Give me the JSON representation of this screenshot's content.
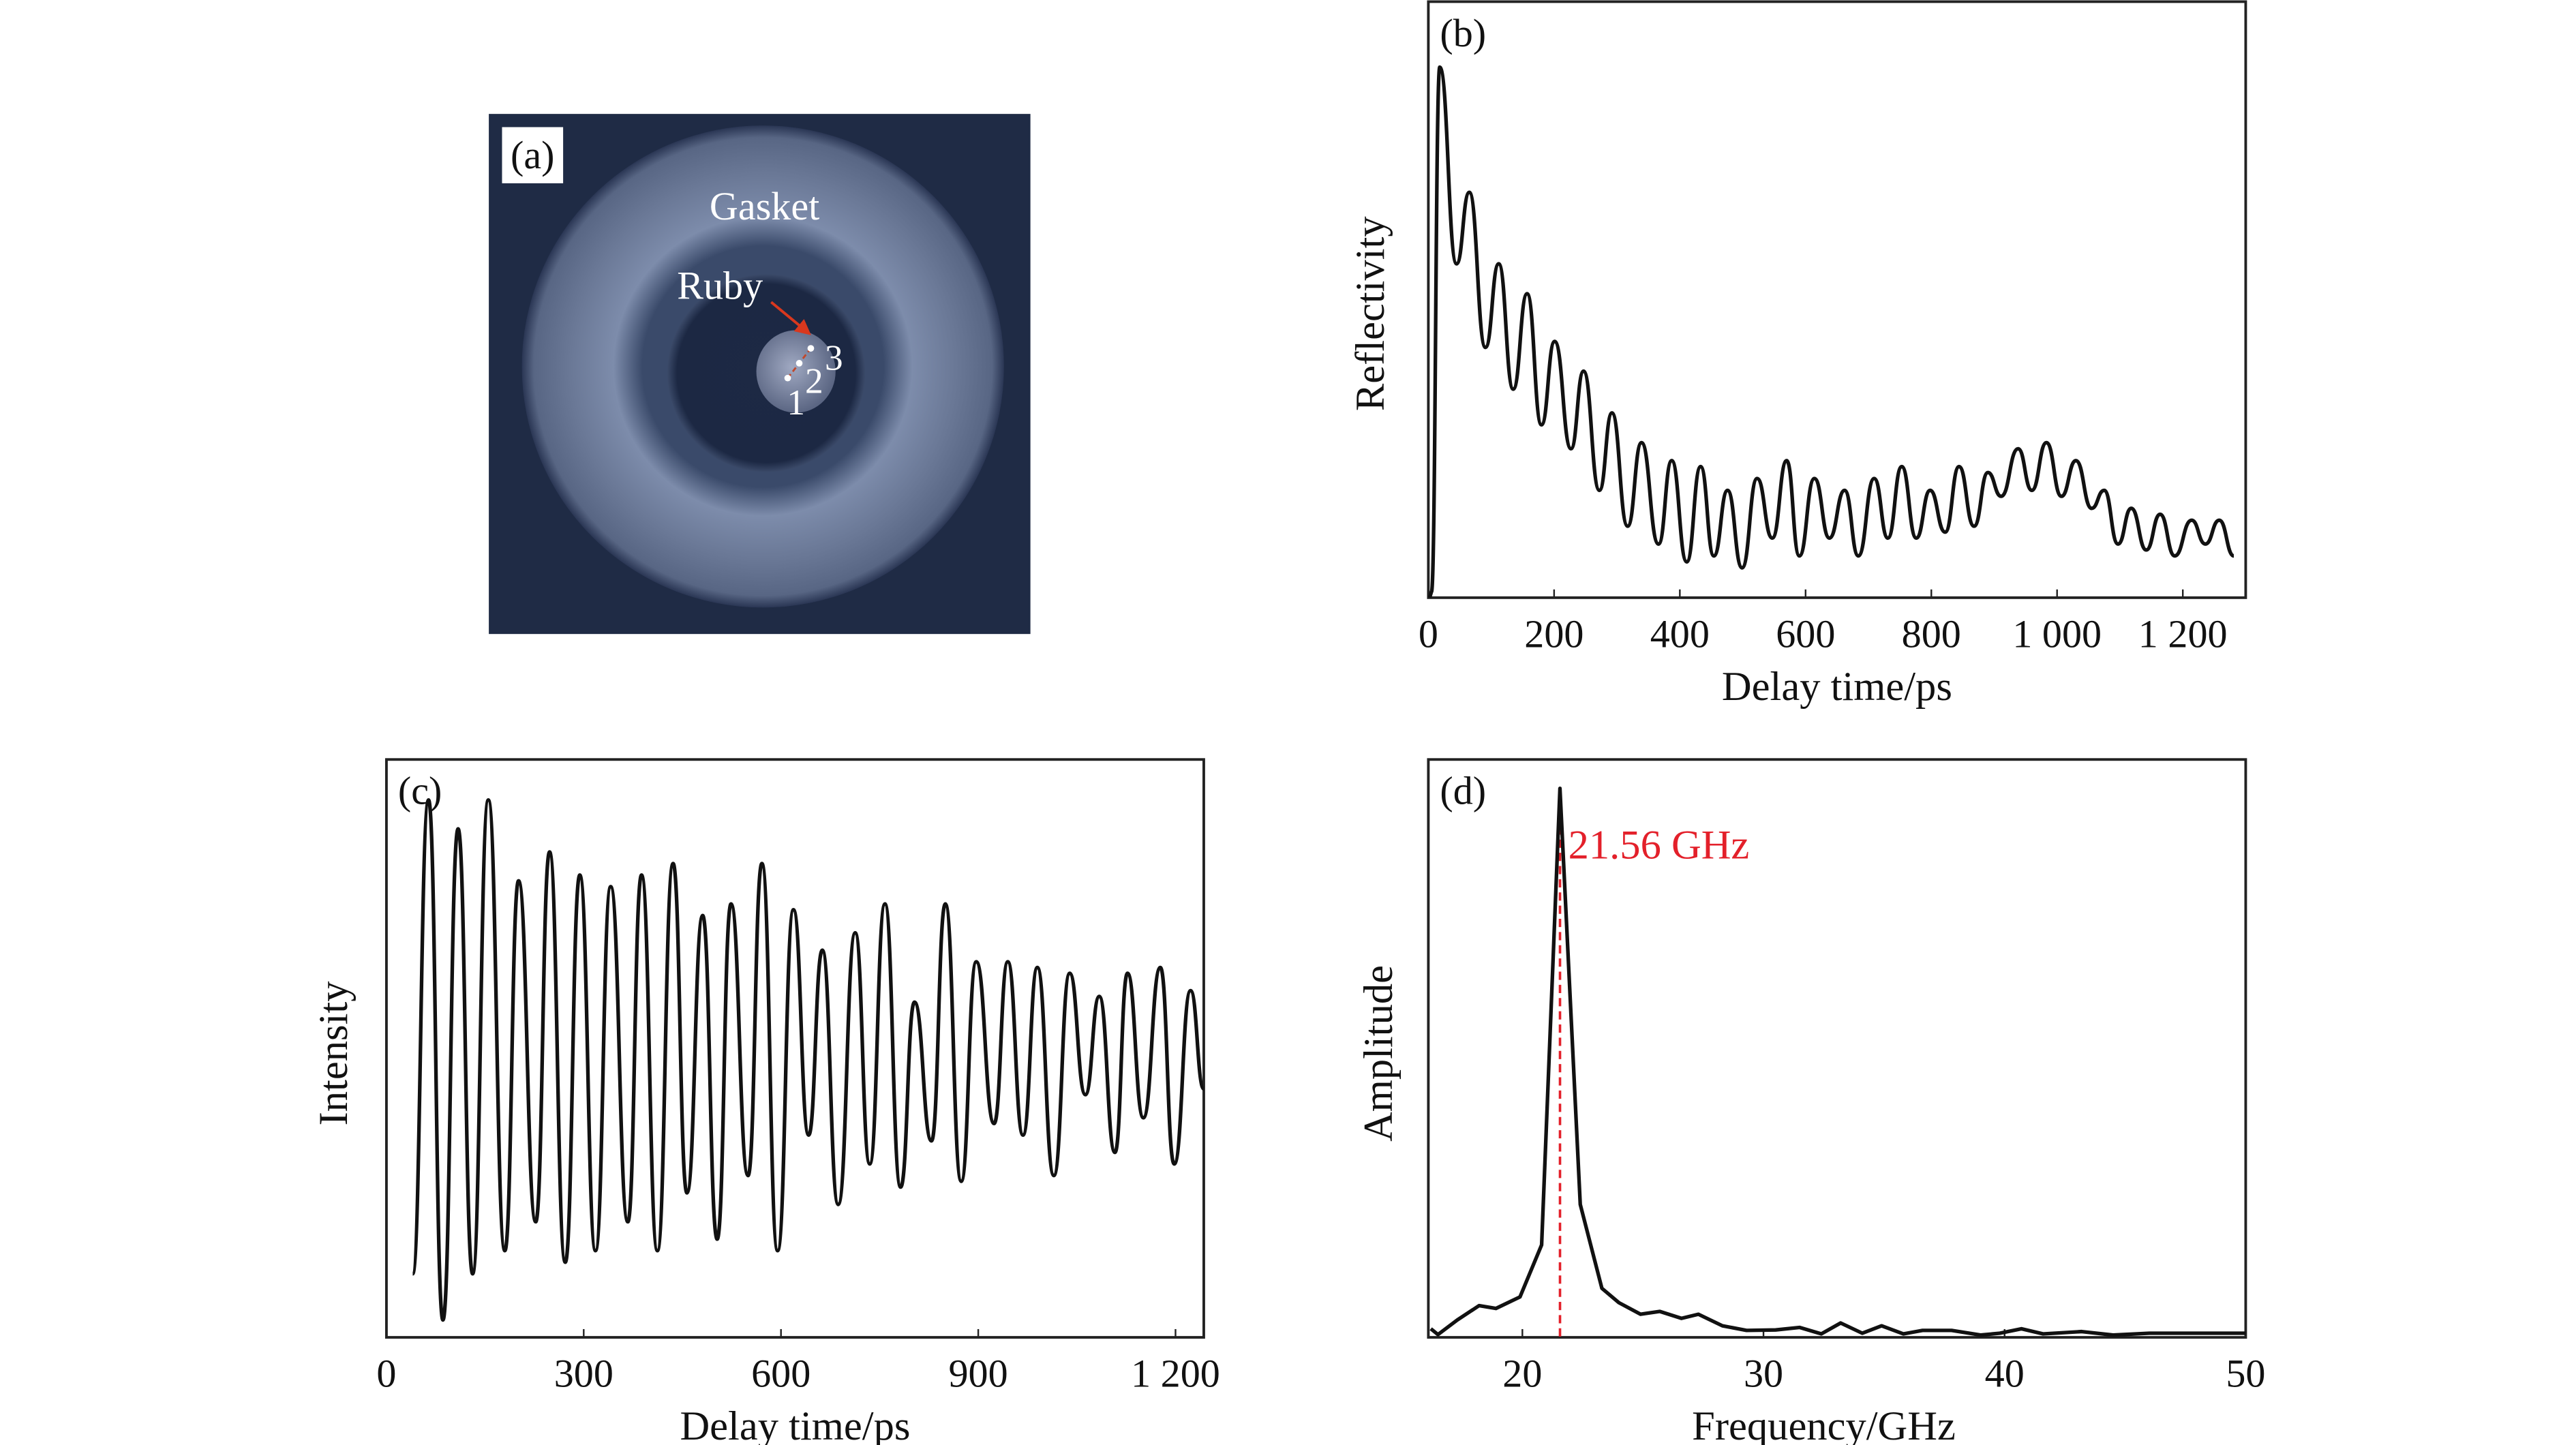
{
  "panel_a": {
    "label": "(a)",
    "gasket_label": "Gasket",
    "ruby_label": "Ruby",
    "point_labels": [
      "1",
      "2",
      "3"
    ],
    "colors": {
      "background": "#1f2b45",
      "gasket": "#6f7f9e",
      "hole": "#1b2741",
      "sample": "#8f99b4",
      "arrow": "#d9381e",
      "text": "#ffffff"
    }
  },
  "chart_data": [
    {
      "id": "b",
      "type": "line",
      "panel_label": "(b)",
      "title": "",
      "xlabel": "Delay time/ps",
      "ylabel": "Reflectivity",
      "xlim": [
        0,
        1300
      ],
      "ylim": [
        0,
        1
      ],
      "xticks": [
        0,
        200,
        400,
        600,
        800,
        1000,
        1200
      ],
      "xtick_labels": [
        "0",
        "200",
        "400",
        "600",
        "800",
        "1 000",
        "1 200"
      ],
      "yticks": [],
      "grid": false,
      "color": "#111111",
      "x": [
        5,
        18,
        45,
        65,
        91,
        112,
        135,
        157,
        180,
        201,
        227,
        247,
        272,
        292,
        317,
        339,
        366,
        387,
        411,
        433,
        454,
        476,
        499,
        523,
        547,
        570,
        590,
        614,
        638,
        662,
        684,
        709,
        731,
        753,
        776,
        798,
        822,
        844,
        868,
        890,
        911,
        938,
        960,
        983,
        1007,
        1030,
        1055,
        1075,
        1097,
        1118,
        1142,
        1164,
        1187,
        1214,
        1236,
        1258,
        1281
      ],
      "y": [
        0.01,
        0.89,
        0.56,
        0.68,
        0.42,
        0.56,
        0.35,
        0.51,
        0.29,
        0.43,
        0.25,
        0.38,
        0.18,
        0.31,
        0.12,
        0.26,
        0.09,
        0.23,
        0.06,
        0.22,
        0.07,
        0.18,
        0.05,
        0.2,
        0.1,
        0.23,
        0.07,
        0.2,
        0.1,
        0.18,
        0.07,
        0.2,
        0.1,
        0.22,
        0.1,
        0.18,
        0.11,
        0.22,
        0.12,
        0.21,
        0.17,
        0.25,
        0.18,
        0.26,
        0.17,
        0.23,
        0.15,
        0.18,
        0.09,
        0.15,
        0.08,
        0.14,
        0.07,
        0.13,
        0.09,
        0.13,
        0.07
      ]
    },
    {
      "id": "c",
      "type": "line",
      "panel_label": "(c)",
      "title": "",
      "xlabel": "Delay time/ps",
      "ylabel": "Intensity",
      "xlim": [
        0,
        1243
      ],
      "ylim": [
        0,
        1
      ],
      "xticks": [
        0,
        300,
        600,
        900,
        1200
      ],
      "xtick_labels": [
        "0",
        "300",
        "600",
        "900",
        "1 200"
      ],
      "yticks": [],
      "grid": false,
      "color": "#111111",
      "x": [
        40,
        64,
        86,
        109,
        131,
        155,
        180,
        201,
        227,
        248,
        272,
        294,
        318,
        341,
        367,
        388,
        412,
        436,
        457,
        481,
        503,
        524,
        550,
        571,
        595,
        619,
        642,
        663,
        687,
        713,
        735,
        758,
        782,
        803,
        829,
        850,
        874,
        897,
        924,
        945,
        968,
        990,
        1015,
        1039,
        1063,
        1084,
        1108,
        1127,
        1151,
        1177,
        1198,
        1223,
        1243
      ],
      "y": [
        0.11,
        0.93,
        0.03,
        0.88,
        0.11,
        0.93,
        0.15,
        0.79,
        0.2,
        0.84,
        0.13,
        0.8,
        0.15,
        0.78,
        0.2,
        0.8,
        0.15,
        0.82,
        0.25,
        0.73,
        0.17,
        0.75,
        0.28,
        0.82,
        0.15,
        0.74,
        0.35,
        0.67,
        0.23,
        0.7,
        0.3,
        0.75,
        0.26,
        0.58,
        0.34,
        0.75,
        0.27,
        0.65,
        0.37,
        0.65,
        0.35,
        0.64,
        0.28,
        0.63,
        0.42,
        0.59,
        0.32,
        0.63,
        0.38,
        0.64,
        0.3,
        0.6,
        0.43
      ]
    },
    {
      "id": "d",
      "type": "line",
      "panel_label": "(d)",
      "title": "",
      "xlabel": "Frequency/GHz",
      "ylabel": "Amplitude",
      "xlim": [
        16.1,
        50
      ],
      "ylim": [
        0,
        1
      ],
      "xticks": [
        20,
        30,
        40,
        50
      ],
      "xtick_labels": [
        "20",
        "30",
        "40",
        "50"
      ],
      "yticks": [],
      "grid": false,
      "color": "#111111",
      "x": [
        16.2,
        16.5,
        17.3,
        18.2,
        18.9,
        19.9,
        20.8,
        21.56,
        22.4,
        23.3,
        24.0,
        24.9,
        25.7,
        26.6,
        27.3,
        28.3,
        29.3,
        30.5,
        31.5,
        32.4,
        33.2,
        34.1,
        34.9,
        35.8,
        36.6,
        37.8,
        39.0,
        39.8,
        40.7,
        41.6,
        43.2,
        44.5,
        46.0,
        48.0,
        50.0
      ],
      "y": [
        0.015,
        0.005,
        0.03,
        0.055,
        0.05,
        0.07,
        0.16,
        0.95,
        0.23,
        0.085,
        0.06,
        0.04,
        0.045,
        0.033,
        0.04,
        0.02,
        0.012,
        0.013,
        0.017,
        0.006,
        0.025,
        0.007,
        0.02,
        0.006,
        0.012,
        0.012,
        0.004,
        0.007,
        0.015,
        0.006,
        0.01,
        0.004,
        0.007,
        0.007,
        0.007
      ],
      "annotation": {
        "text": "21.56 GHz",
        "x": 21.56,
        "color": "#e3202a",
        "line_style": "dashed"
      }
    }
  ]
}
